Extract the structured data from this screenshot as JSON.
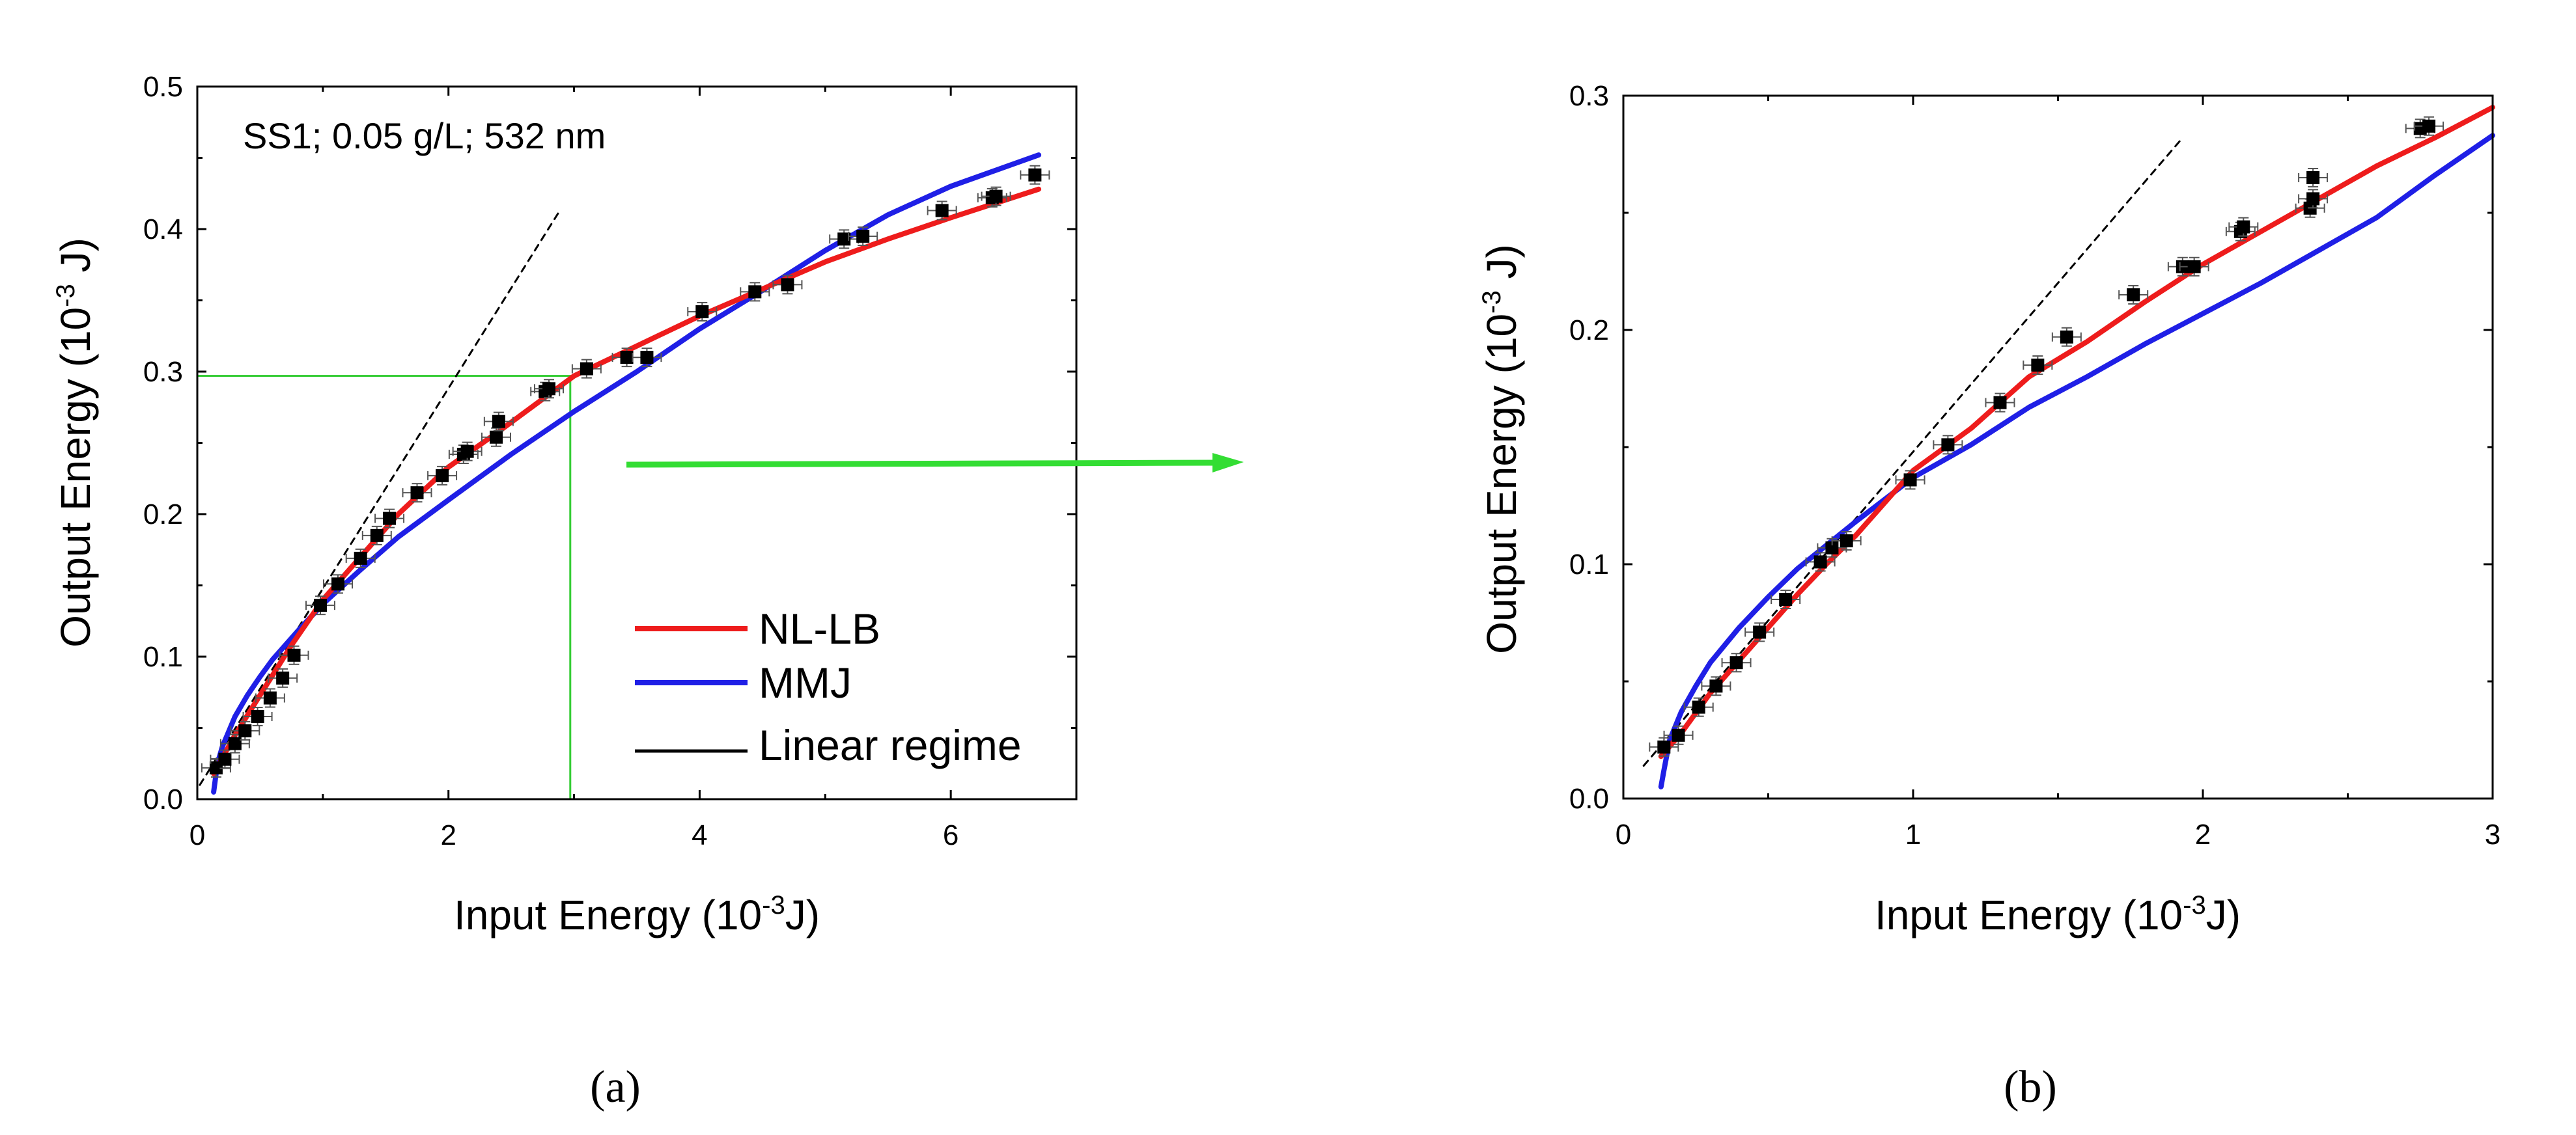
{
  "chart_data": [
    {
      "type": "scatter",
      "panel_label": "(a)",
      "annotation": "SS1; 0.05 g/L; 532 nm",
      "xlabel": "Input Energy (10",
      "xlabel_exp": "-3",
      "xlabel_unit": "J)",
      "ylabel": "Output Energy (10",
      "ylabel_exp": "-3",
      "ylabel_unit": " J)",
      "xlim": [
        0,
        7
      ],
      "ylim": [
        0,
        0.5
      ],
      "xticks": [
        0,
        2,
        4,
        6
      ],
      "xtick_labels": [
        "0",
        "2",
        "4",
        "6"
      ],
      "yticks": [
        0,
        0.1,
        0.2,
        0.3,
        0.4,
        0.5
      ],
      "ytick_labels": [
        "0.0",
        "0.1",
        "0.2",
        "0.3",
        "0.4",
        "0.5"
      ],
      "legend": {
        "position": "bottom-right",
        "entries": [
          {
            "label": "NL-LB",
            "color": "#ee1c1c"
          },
          {
            "label": "MMJ",
            "color": "#1f1fe6"
          },
          {
            "label": "Linear regime",
            "color": "#000000"
          }
        ]
      },
      "zoom_box": {
        "x": [
          0,
          2.97
        ],
        "y": [
          0,
          0.297
        ],
        "color": "#33cc33"
      },
      "points": {
        "x": [
          0.15,
          0.22,
          0.3,
          0.38,
          0.48,
          0.58,
          0.68,
          0.77,
          0.98,
          1.12,
          1.3,
          1.43,
          1.53,
          1.75,
          1.95,
          2.12,
          2.15,
          2.38,
          2.4,
          2.77,
          2.8,
          3.1,
          3.42,
          3.58,
          4.02,
          4.44,
          4.7,
          5.15,
          5.3,
          5.93,
          6.33,
          6.36,
          6.67
        ],
        "y": [
          0.022,
          0.028,
          0.039,
          0.048,
          0.058,
          0.071,
          0.085,
          0.101,
          0.136,
          0.151,
          0.169,
          0.185,
          0.197,
          0.215,
          0.227,
          0.242,
          0.244,
          0.254,
          0.265,
          0.286,
          0.288,
          0.302,
          0.31,
          0.31,
          0.342,
          0.356,
          0.361,
          0.393,
          0.395,
          0.413,
          0.422,
          0.423,
          0.438
        ]
      },
      "series": [
        {
          "name": "NL-LB",
          "color": "#ee1c1c",
          "x": [
            0.13,
            0.3,
            0.5,
            0.75,
            1.0,
            1.3,
            1.6,
            2.0,
            2.4,
            3.0,
            3.5,
            4.0,
            4.5,
            5.0,
            5.5,
            6.0,
            6.7
          ],
          "y": [
            0.018,
            0.045,
            0.073,
            0.108,
            0.14,
            0.17,
            0.2,
            0.233,
            0.258,
            0.297,
            0.318,
            0.339,
            0.358,
            0.377,
            0.393,
            0.408,
            0.428
          ]
        },
        {
          "name": "MMJ",
          "color": "#1f1fe6",
          "x": [
            0.13,
            0.16,
            0.2,
            0.3,
            0.4,
            0.5,
            0.6,
            0.8,
            1.0,
            1.3,
            1.6,
            2.0,
            2.5,
            3.0,
            3.5,
            4.0,
            4.5,
            5.0,
            5.5,
            6.0,
            6.7
          ],
          "y": [
            0.005,
            0.025,
            0.037,
            0.058,
            0.073,
            0.086,
            0.098,
            0.118,
            0.137,
            0.161,
            0.184,
            0.21,
            0.242,
            0.272,
            0.3,
            0.33,
            0.357,
            0.385,
            0.41,
            0.43,
            0.452
          ]
        },
        {
          "name": "Linear regime",
          "color": "#000000",
          "dashed": true,
          "x": [
            0.02,
            2.88
          ],
          "y": [
            0.01,
            0.412
          ]
        }
      ]
    },
    {
      "type": "scatter",
      "panel_label": "(b)",
      "xlabel": "Input Energy (10",
      "xlabel_exp": "-3",
      "xlabel_unit": "J)",
      "ylabel": "Output Energy (10",
      "ylabel_exp": "-3",
      "ylabel_unit": " J)",
      "xlim": [
        0,
        3
      ],
      "ylim": [
        0,
        0.3
      ],
      "xticks": [
        0,
        1,
        2,
        3
      ],
      "xtick_labels": [
        "0",
        "1",
        "2",
        "3"
      ],
      "yticks": [
        0,
        0.1,
        0.2,
        0.3
      ],
      "ytick_labels": [
        "0.0",
        "0.1",
        "0.2",
        "0.3"
      ],
      "points": {
        "x": [
          0.14,
          0.19,
          0.26,
          0.32,
          0.39,
          0.47,
          0.56,
          0.68,
          0.72,
          0.77,
          0.99,
          1.12,
          1.3,
          1.43,
          1.53,
          1.76,
          1.93,
          1.97,
          2.13,
          2.14,
          2.37,
          2.38,
          2.38,
          2.75,
          2.78
        ],
        "y": [
          0.022,
          0.027,
          0.039,
          0.048,
          0.058,
          0.071,
          0.085,
          0.101,
          0.107,
          0.11,
          0.136,
          0.151,
          0.169,
          0.185,
          0.197,
          0.215,
          0.227,
          0.227,
          0.242,
          0.244,
          0.252,
          0.256,
          0.265,
          0.286,
          0.287
        ]
      },
      "series": [
        {
          "name": "NL-LB",
          "color": "#ee1c1c",
          "x": [
            0.13,
            0.2,
            0.3,
            0.4,
            0.5,
            0.6,
            0.7,
            0.8,
            1.0,
            1.2,
            1.4,
            1.6,
            1.8,
            2.0,
            2.2,
            2.4,
            2.6,
            2.8,
            3.0
          ],
          "y": [
            0.018,
            0.028,
            0.045,
            0.059,
            0.073,
            0.087,
            0.1,
            0.112,
            0.14,
            0.158,
            0.18,
            0.195,
            0.212,
            0.228,
            0.242,
            0.256,
            0.27,
            0.282,
            0.295
          ]
        },
        {
          "name": "MMJ",
          "color": "#1f1fe6",
          "x": [
            0.13,
            0.14,
            0.16,
            0.2,
            0.25,
            0.3,
            0.4,
            0.5,
            0.6,
            0.8,
            1.0,
            1.2,
            1.4,
            1.6,
            1.8,
            2.0,
            2.2,
            2.4,
            2.6,
            2.8,
            3.0
          ],
          "y": [
            0.005,
            0.012,
            0.025,
            0.037,
            0.048,
            0.058,
            0.073,
            0.086,
            0.098,
            0.118,
            0.137,
            0.151,
            0.167,
            0.18,
            0.194,
            0.207,
            0.22,
            0.234,
            0.248,
            0.266,
            0.283
          ]
        },
        {
          "name": "Linear regime",
          "color": "#000000",
          "dashed": true,
          "x": [
            0.07,
            1.93
          ],
          "y": [
            0.014,
            0.282
          ]
        }
      ]
    }
  ]
}
